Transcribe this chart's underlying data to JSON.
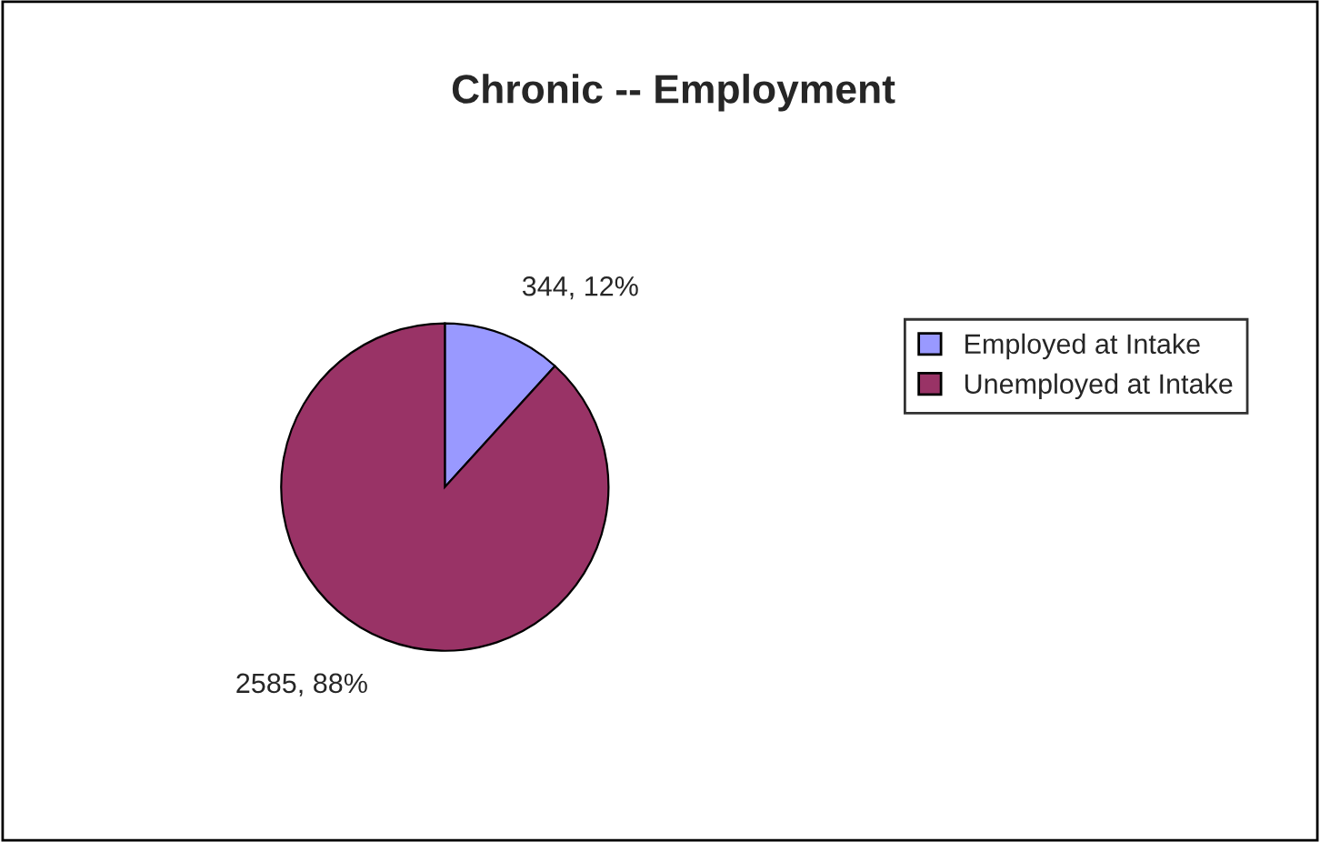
{
  "chart_data": {
    "type": "pie",
    "title": "Chronic -- Employment",
    "categories": [
      "Employed at Intake",
      "Unemployed at Intake"
    ],
    "values": [
      344,
      2585
    ],
    "colors": [
      "#9999ff",
      "#993366"
    ],
    "value_labels": [
      "344, 12%",
      "2585, 88%"
    ],
    "legend": "right"
  }
}
